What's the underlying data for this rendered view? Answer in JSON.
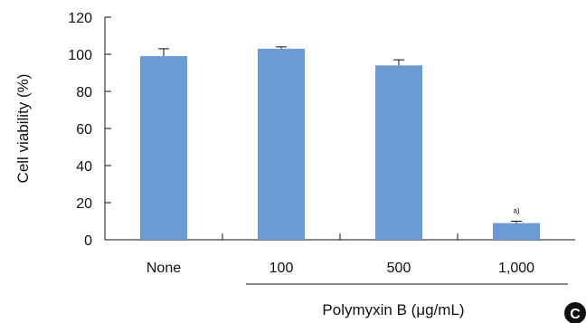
{
  "chart_data": {
    "type": "bar",
    "categories": [
      "None",
      "100",
      "500",
      "1,000"
    ],
    "values": [
      99,
      103,
      94,
      9
    ],
    "errors": [
      4,
      1,
      3,
      1
    ],
    "ylabel": "Cell viability (%)",
    "xlabel": "Polymyxin B (μg/mL)",
    "ylim": [
      0,
      120
    ],
    "yticks": [
      "0",
      "20",
      "40",
      "60",
      "80",
      "100",
      "120"
    ],
    "annotations": [
      {
        "category": "1,000",
        "text": "a)"
      }
    ],
    "bar_color": "#6b9bd2",
    "grid": false
  },
  "panel_label": "C"
}
